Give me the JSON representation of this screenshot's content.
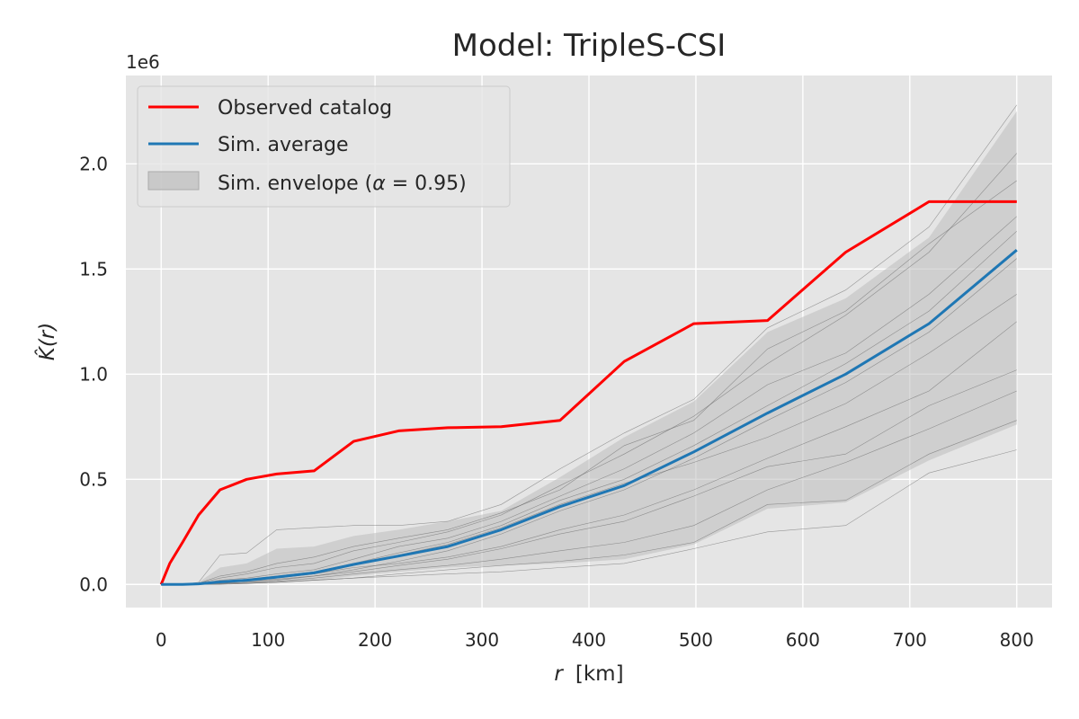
{
  "chart_data": {
    "type": "line",
    "title": "Model: TripleS-CSI",
    "xlabel_var": "r",
    "xlabel_unit": "[km]",
    "ylabel_text": "K̂(r)",
    "y_offset_label": "1e6",
    "xlim": [
      -33,
      833
    ],
    "ylim": [
      -0.11,
      2.42
    ],
    "x_ticks": [
      0,
      100,
      200,
      300,
      400,
      500,
      600,
      700,
      800
    ],
    "x_tick_labels": [
      "0",
      "100",
      "200",
      "300",
      "400",
      "500",
      "600",
      "700",
      "800"
    ],
    "y_ticks": [
      0.0,
      0.5,
      1.0,
      1.5,
      2.0
    ],
    "y_tick_labels": [
      "0.0",
      "0.5",
      "1.0",
      "1.5",
      "2.0"
    ],
    "grid": true,
    "legend_position": "top-left",
    "colors": {
      "plot_background": "#e5e5e5",
      "grid": "#ffffff",
      "observed": "#ff0000",
      "average": "#1f77b4",
      "envelope": "#bdbdbd",
      "sim_trace": "#555555"
    },
    "legend": [
      {
        "label": "Observed catalog",
        "kind": "line",
        "color": "#ff0000"
      },
      {
        "label": "Sim. average",
        "kind": "line",
        "color": "#1f77b4"
      },
      {
        "label_prefix": "Sim. envelope (",
        "label_symbol": "α",
        "label_suffix": " = 0.95)",
        "kind": "patch",
        "color": "#bdbdbd"
      }
    ],
    "x": [
      0,
      8,
      20,
      35,
      55,
      80,
      108,
      143,
      180,
      222,
      268,
      318,
      373,
      433,
      498,
      567,
      640,
      718,
      800
    ],
    "series": [
      {
        "name": "Observed catalog",
        "values": [
          0.0,
          0.1,
          0.2,
          0.33,
          0.45,
          0.5,
          0.525,
          0.54,
          0.68,
          0.73,
          0.745,
          0.75,
          0.78,
          1.06,
          1.24,
          1.255,
          1.58,
          1.82,
          1.82
        ]
      },
      {
        "name": "Sim. average",
        "values": [
          0.0,
          0.0,
          0.0,
          0.003,
          0.012,
          0.02,
          0.035,
          0.055,
          0.095,
          0.135,
          0.18,
          0.26,
          0.37,
          0.47,
          0.63,
          0.815,
          1.0,
          1.24,
          1.59
        ]
      }
    ],
    "envelope": {
      "name": "Sim. envelope (α = 0.95)",
      "upper": [
        0.0,
        0.0,
        0.0,
        0.01,
        0.08,
        0.1,
        0.17,
        0.18,
        0.23,
        0.26,
        0.3,
        0.35,
        0.51,
        0.7,
        0.87,
        1.2,
        1.36,
        1.65,
        2.25
      ],
      "lower": [
        0.0,
        0.0,
        0.0,
        0.0,
        0.0,
        0.0,
        0.01,
        0.02,
        0.04,
        0.06,
        0.08,
        0.09,
        0.1,
        0.12,
        0.19,
        0.36,
        0.39,
        0.59,
        0.76
      ]
    },
    "sim_traces": [
      [
        0.0,
        0.0,
        0.0,
        0.002,
        0.005,
        0.01,
        0.02,
        0.04,
        0.07,
        0.11,
        0.16,
        0.24,
        0.35,
        0.45,
        0.6,
        0.78,
        0.96,
        1.2,
        1.55
      ],
      [
        0.0,
        0.0,
        0.0,
        0.01,
        0.14,
        0.15,
        0.26,
        0.27,
        0.28,
        0.28,
        0.3,
        0.38,
        0.55,
        0.72,
        0.88,
        1.22,
        1.4,
        1.7,
        2.28
      ],
      [
        0.0,
        0.0,
        0.0,
        0.0,
        0.0,
        0.005,
        0.01,
        0.02,
        0.03,
        0.05,
        0.07,
        0.09,
        0.11,
        0.14,
        0.2,
        0.38,
        0.4,
        0.62,
        0.78
      ],
      [
        0.0,
        0.0,
        0.0,
        0.003,
        0.02,
        0.03,
        0.05,
        0.07,
        0.12,
        0.18,
        0.22,
        0.3,
        0.42,
        0.55,
        0.72,
        0.95,
        1.1,
        1.38,
        1.75
      ],
      [
        0.0,
        0.0,
        0.0,
        0.002,
        0.01,
        0.02,
        0.03,
        0.05,
        0.08,
        0.1,
        0.13,
        0.18,
        0.26,
        0.33,
        0.45,
        0.6,
        0.75,
        0.92,
        1.25
      ],
      [
        0.0,
        0.0,
        0.0,
        0.005,
        0.03,
        0.05,
        0.08,
        0.1,
        0.16,
        0.2,
        0.25,
        0.33,
        0.47,
        0.62,
        0.8,
        1.05,
        1.28,
        1.58,
        2.05
      ],
      [
        0.0,
        0.0,
        0.0,
        0.001,
        0.004,
        0.01,
        0.015,
        0.03,
        0.05,
        0.07,
        0.09,
        0.12,
        0.16,
        0.2,
        0.28,
        0.45,
        0.58,
        0.74,
        0.92
      ],
      [
        0.0,
        0.0,
        0.0,
        0.004,
        0.015,
        0.025,
        0.04,
        0.06,
        0.1,
        0.15,
        0.2,
        0.28,
        0.4,
        0.5,
        0.66,
        0.85,
        1.05,
        1.3,
        1.68
      ],
      [
        0.0,
        0.0,
        0.0,
        0.003,
        0.01,
        0.02,
        0.035,
        0.05,
        0.09,
        0.14,
        0.19,
        0.27,
        0.38,
        0.48,
        0.58,
        0.7,
        0.86,
        1.1,
        1.38
      ],
      [
        0.0,
        0.0,
        0.0,
        0.0,
        0.002,
        0.005,
        0.01,
        0.02,
        0.03,
        0.04,
        0.05,
        0.06,
        0.08,
        0.1,
        0.17,
        0.25,
        0.28,
        0.53,
        0.64
      ],
      [
        0.0,
        0.0,
        0.0,
        0.006,
        0.04,
        0.06,
        0.1,
        0.13,
        0.18,
        0.22,
        0.26,
        0.34,
        0.45,
        0.66,
        0.78,
        1.12,
        1.3,
        1.62,
        1.92
      ],
      [
        0.0,
        0.0,
        0.0,
        0.002,
        0.008,
        0.015,
        0.025,
        0.04,
        0.06,
        0.09,
        0.12,
        0.17,
        0.24,
        0.3,
        0.42,
        0.56,
        0.62,
        0.85,
        1.02
      ]
    ]
  }
}
